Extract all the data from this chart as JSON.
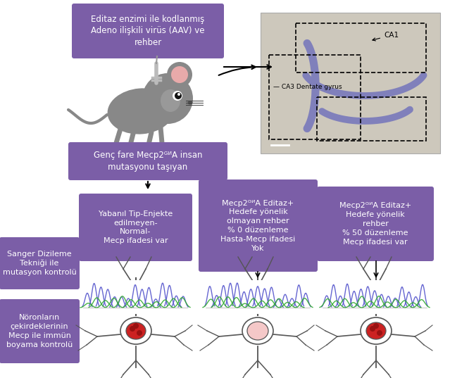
{
  "bg_color": "#ffffff",
  "purple": "#7b5ea7",
  "white": "#ffffff",
  "box1_text": "Editaz enzimi ile kodlanmış\nAdeno ilişkili virüs (AAV) ve\nrehber",
  "box2_text": "Genç fare Mecp2ᴳᴻA insan\nmutasyonu taşıyan",
  "box_wt": "Yabanıl Tip-Enjekte\nedilmeyen-\nNormal-\nMecp ifadesi var",
  "box_mid": "Mecp2ᴳᴻA Editaz+\nHedefe yönelik\nolmayan rehber\n% 0 düzenleme\nHasta-Mecp ifadesi\nYok",
  "box_right": "Mecp2ᴳᴻA Editaz+\nHedefe yönelik\nrehber\n% 50 düzenleme\nMecp ifadesi var",
  "box_sanger": "Sanger Dizileme\nTekniği ile\nmutasyon kontrolü",
  "box_neuron": "Nöronların\nçekirdeklerinin\nMecp ile immün\nboyama kontrolü",
  "brain_bg": "#cdc8bc",
  "purple_dark": "#6a4f8a"
}
